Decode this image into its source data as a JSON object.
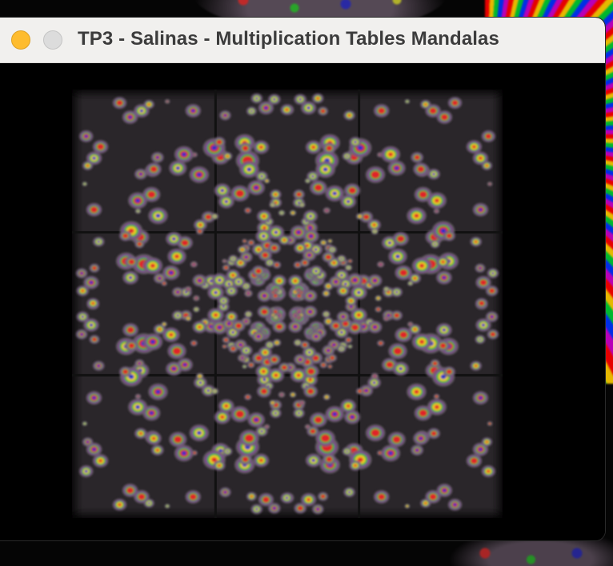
{
  "window": {
    "title": "TP3 - Salinas - Multiplication Tables Mandalas"
  },
  "controls": {
    "minimize_icon": "minimize-traffic-light",
    "zoom_icon": "zoom-traffic-light"
  },
  "colors": {
    "titlebar_bg": "#f1f0ee",
    "title_text": "#3c3c3c",
    "minimize": "#febc2e",
    "zoom_inactive": "#dcdcdc",
    "canvas_bg": "#000000",
    "mandala_palette": [
      "#e0232b",
      "#f0d020",
      "#28b83a",
      "#2230c8",
      "#8a3aa0",
      "#6e6470"
    ]
  }
}
